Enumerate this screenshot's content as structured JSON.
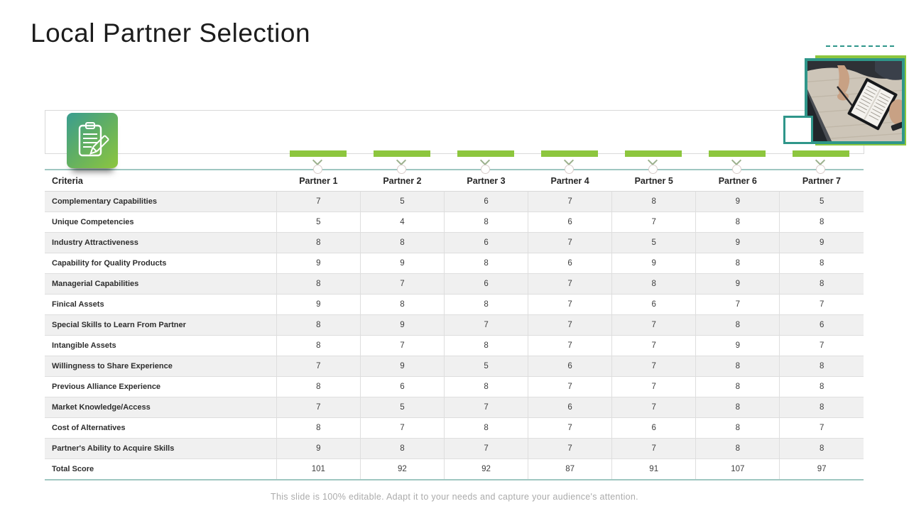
{
  "slide": {
    "title": "Local Partner Selection",
    "footer": "This slide is 100% editable. Adapt it to your needs and capture your audience's attention."
  },
  "icons": {
    "clipboard_pencil": "clipboard with pencil badge",
    "chevron_down": "▾",
    "column_dot": "○"
  },
  "colors": {
    "accent_green": "#8dc63e",
    "accent_teal": "#2f968a",
    "table_teal_line": "#9fc7c1",
    "row_stripe": "#f0f0f0",
    "grid_border": "#d9d9d9"
  },
  "table": {
    "criteria_header": "Criteria",
    "partner_headers": [
      "Partner 1",
      "Partner 2",
      "Partner 3",
      "Partner 4",
      "Partner 5",
      "Partner 6",
      "Partner 7"
    ],
    "rows": [
      {
        "label": "Complementary Capabilities",
        "values": [
          7,
          5,
          6,
          7,
          8,
          9,
          5
        ]
      },
      {
        "label": "Unique Competencies",
        "values": [
          5,
          4,
          8,
          6,
          7,
          8,
          8
        ]
      },
      {
        "label": "Industry Attractiveness",
        "values": [
          8,
          8,
          6,
          7,
          5,
          9,
          9
        ]
      },
      {
        "label": "Capability for Quality Products",
        "values": [
          9,
          9,
          8,
          6,
          9,
          8,
          8
        ]
      },
      {
        "label": "Managerial Capabilities",
        "values": [
          8,
          7,
          6,
          7,
          8,
          9,
          8
        ]
      },
      {
        "label": "Finical Assets",
        "values": [
          9,
          8,
          8,
          7,
          6,
          7,
          7
        ]
      },
      {
        "label": "Special Skills to Learn From Partner",
        "values": [
          8,
          9,
          7,
          7,
          7,
          8,
          6
        ]
      },
      {
        "label": "Intangible Assets",
        "values": [
          8,
          7,
          8,
          7,
          7,
          9,
          7
        ]
      },
      {
        "label": "Willingness to Share Experience",
        "values": [
          7,
          9,
          5,
          6,
          7,
          8,
          8
        ]
      },
      {
        "label": "Previous Alliance Experience",
        "values": [
          8,
          6,
          8,
          7,
          7,
          8,
          8
        ]
      },
      {
        "label": "Market Knowledge/Access",
        "values": [
          7,
          5,
          7,
          6,
          7,
          8,
          8
        ]
      },
      {
        "label": "Cost of Alternatives",
        "values": [
          8,
          7,
          8,
          7,
          6,
          8,
          7
        ]
      },
      {
        "label": "Partner's Ability to Acquire Skills",
        "values": [
          9,
          8,
          7,
          7,
          7,
          8,
          8
        ]
      }
    ],
    "total": {
      "label": "Total Score",
      "values": [
        101,
        92,
        92,
        87,
        91,
        107,
        97
      ]
    }
  }
}
